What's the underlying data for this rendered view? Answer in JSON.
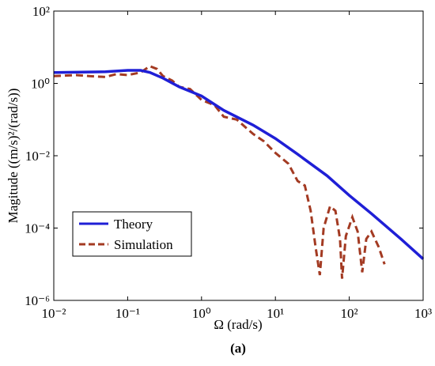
{
  "chart_data": {
    "type": "line",
    "xlabel": "Ω (rad/s)",
    "ylabel": "Magitude ((m/s)²/(rad/s))",
    "annotation": "(a)",
    "xscale": "log",
    "yscale": "log",
    "xlim": [
      0.01,
      1000
    ],
    "ylim": [
      1e-06,
      100
    ],
    "xticks": [
      {
        "value": 0.01,
        "label": "10⁻²"
      },
      {
        "value": 0.1,
        "label": "10⁻¹"
      },
      {
        "value": 1,
        "label": "10⁰"
      },
      {
        "value": 10,
        "label": "10¹"
      },
      {
        "value": 100,
        "label": "10²"
      },
      {
        "value": 1000,
        "label": "10³"
      }
    ],
    "yticks": [
      {
        "value": 1e-06,
        "label": "10⁻⁶"
      },
      {
        "value": 0.0001,
        "label": "10⁻⁴"
      },
      {
        "value": 0.01,
        "label": "10⁻²"
      },
      {
        "value": 1,
        "label": "10⁰"
      },
      {
        "value": 100,
        "label": "10²"
      }
    ],
    "legend": "lower left",
    "series": [
      {
        "name": "Theory",
        "color": "#1f1fd6",
        "dash": false,
        "x": [
          0.01,
          0.05,
          0.1,
          0.15,
          0.2,
          0.3,
          0.5,
          1,
          2,
          5,
          10,
          20,
          50,
          100,
          200,
          500,
          1000
        ],
        "values": [
          2.0,
          2.1,
          2.3,
          2.3,
          2.0,
          1.4,
          0.8,
          0.45,
          0.18,
          0.07,
          0.03,
          0.011,
          0.0028,
          0.0008,
          0.00025,
          5e-05,
          1.4e-05
        ]
      },
      {
        "name": "Simulation",
        "color": "#a33a22",
        "dash": true,
        "x": [
          0.01,
          0.02,
          0.03,
          0.05,
          0.07,
          0.1,
          0.15,
          0.2,
          0.25,
          0.3,
          0.4,
          0.5,
          0.7,
          1,
          1.5,
          2,
          3,
          5,
          7,
          10,
          15,
          20,
          25,
          30,
          35,
          40,
          45,
          55,
          65,
          75,
          80,
          90,
          110,
          130,
          150,
          170,
          200,
          250,
          300
        ],
        "values": [
          1.6,
          1.7,
          1.6,
          1.5,
          1.8,
          1.7,
          2.0,
          3.0,
          2.5,
          1.6,
          1.2,
          0.8,
          0.7,
          0.35,
          0.25,
          0.12,
          0.1,
          0.04,
          0.025,
          0.012,
          0.006,
          0.002,
          0.0015,
          0.0003,
          3e-05,
          5e-06,
          0.0001,
          0.0004,
          0.0003,
          5e-05,
          4e-06,
          6e-05,
          0.0002,
          8e-05,
          6e-06,
          5e-05,
          8e-05,
          3e-05,
          1e-05
        ]
      }
    ]
  }
}
